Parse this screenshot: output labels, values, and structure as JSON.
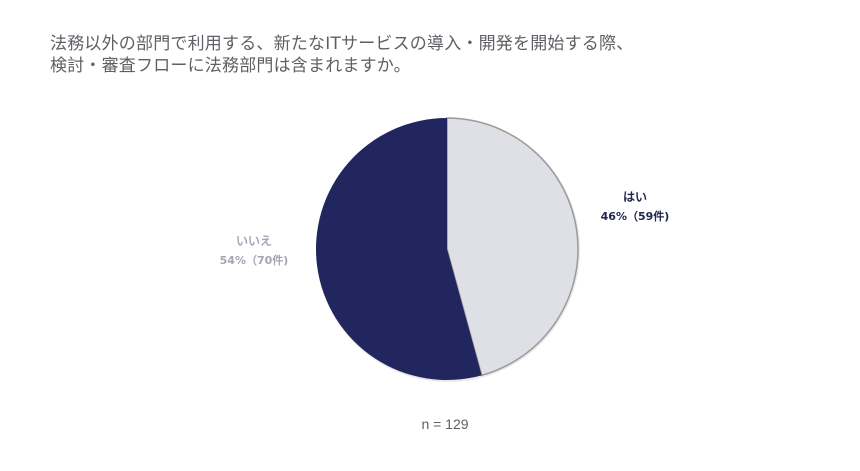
{
  "title": {
    "line1": "法務以外の部門で利用する、新たなITサービスの導入・開発を開始する際、",
    "line2": "検討・審査フローに法務部門は含まれますか。"
  },
  "chart_data": {
    "type": "pie",
    "title": "法務以外の部門で利用する、新たなITサービスの導入・開発を開始する際、検討・審査フローに法務部門は含まれますか。",
    "slices": [
      {
        "label": "はい",
        "percent": 46,
        "count": 59,
        "value_text": "46%（59件)",
        "color": "#dfe0e5"
      },
      {
        "label": "いいえ",
        "percent": 54,
        "count": 70,
        "value_text": "54%（70件)",
        "color": "#22265e"
      }
    ],
    "total_text": "n = 129"
  },
  "colors": {
    "title_text": "#5f5f66",
    "yes_label": "#222650",
    "no_label": "#a3a6b6",
    "slice_border": "#9a9a9a"
  }
}
